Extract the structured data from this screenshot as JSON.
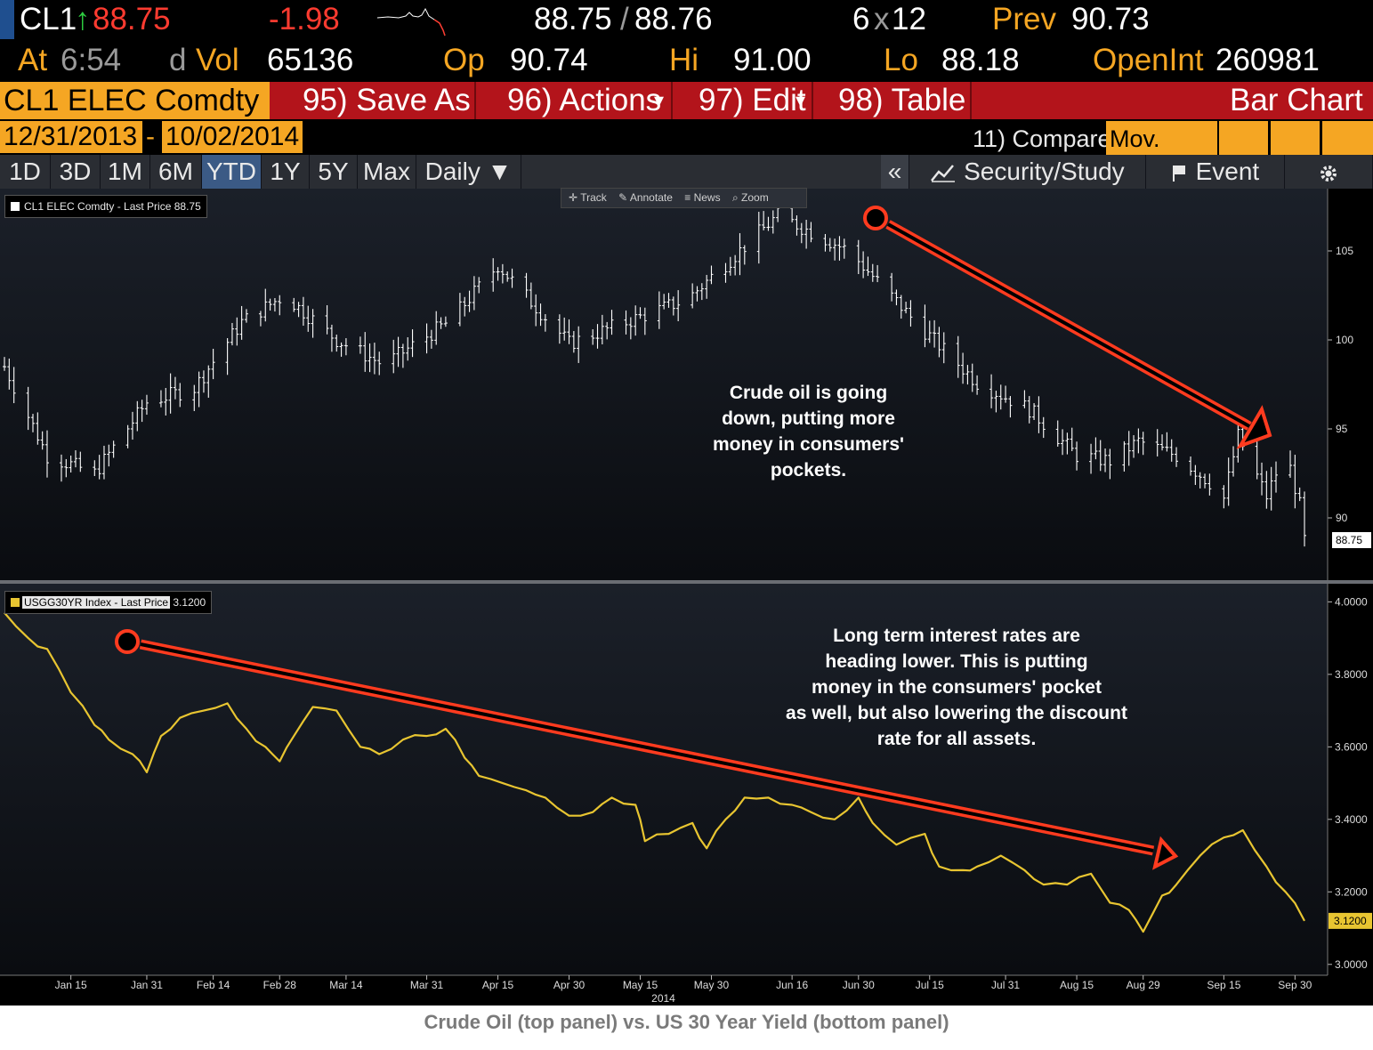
{
  "header": {
    "ticker": "CL1",
    "arrow": "↑",
    "last": "88.75",
    "change": "-1.98",
    "bid_ask_a": "88.75",
    "bid_ask_slash": "/",
    "bid_ask_b": "88.76",
    "size": "6",
    "size_x": "x",
    "size_b": "12",
    "prev_label": "Prev",
    "prev_value": "90.73",
    "at_label": "At",
    "time": "6:54",
    "d_label": "d",
    "vol_label": "Vol",
    "vol_value": "65136",
    "op_label": "Op",
    "op_value": "90.74",
    "hi_label": "Hi",
    "hi_value": "91.00",
    "lo_label": "Lo",
    "lo_value": "88.18",
    "oi_label": "OpenInt",
    "oi_value": "260981"
  },
  "menu": {
    "security": "CL1 ELEC Comdty",
    "save_as": "95) Save As",
    "actions": "96) Actions",
    "actions_caret": "▾",
    "edit": "97) Edit",
    "edit_caret": "▾",
    "table": "98) Table",
    "chart_type": "Bar Chart"
  },
  "dates": {
    "start": "12/31/2013",
    "dash": "-",
    "end": "10/02/2014",
    "compare": "11) Compare",
    "mov_avgs": "Mov. Avgs"
  },
  "tabs": [
    {
      "label": "1D",
      "active": false
    },
    {
      "label": "3D",
      "active": false
    },
    {
      "label": "1M",
      "active": false
    },
    {
      "label": "6M",
      "active": false
    },
    {
      "label": "YTD",
      "active": true
    },
    {
      "label": "1Y",
      "active": false
    },
    {
      "label": "5Y",
      "active": false
    },
    {
      "label": "Max",
      "active": false
    }
  ],
  "toolbar": {
    "daily": "Daily ▼",
    "collapse": "«",
    "security_study": "Security/Study",
    "event": "Event",
    "track": "Track",
    "annotate": "Annotate",
    "news": "News",
    "zoom": "Zoom"
  },
  "colors": {
    "orange": "#f5a623",
    "red_bar": "#b3141b",
    "arrow_red": "#ff3b1f",
    "yield_line": "#e8c531",
    "price_bars": "#ffffff"
  },
  "annotations": {
    "top": "Crude oil is going down, putting more money in consumers' pockets.",
    "top_lines": [
      "Crude oil is going",
      "down, putting more",
      "money in consumers'",
      "pockets."
    ],
    "bottom_lines": [
      "Long term interest rates are",
      "heading lower.  This is putting",
      "money in the consumers' pocket",
      "as well, but also lowering the discount",
      "rate for all assets."
    ]
  },
  "caption": "Crude Oil (top panel) vs. US 30 Year Yield (bottom panel)",
  "chart_data": [
    {
      "type": "bar",
      "title": "CL1 ELEC Comdty - Last Price",
      "legend": "CL1 ELEC Comdty - Last Price 88.75",
      "last_value_label": "88.75",
      "ylim": [
        86.5,
        108.5
      ],
      "y_ticks": [
        90,
        95,
        100,
        105
      ],
      "x_dates": [
        "2014-01-01",
        "2014-01-15",
        "2014-01-31",
        "2014-02-14",
        "2014-02-28",
        "2014-03-14",
        "2014-03-31",
        "2014-04-15",
        "2014-04-30",
        "2014-05-15",
        "2014-05-30",
        "2014-06-16",
        "2014-06-30",
        "2014-07-15",
        "2014-07-31",
        "2014-08-15",
        "2014-08-29",
        "2014-09-15",
        "2014-09-30",
        "2014-10-02"
      ],
      "close_values": [
        98.5,
        93.5,
        92.5,
        96.5,
        97.3,
        101.0,
        102.5,
        100.0,
        98.6,
        101.1,
        104.2,
        99.8,
        102.3,
        107.0,
        105.0,
        101.0,
        97.6,
        96.1,
        93.5,
        93.2,
        94.3,
        93.5,
        92.0,
        91.1,
        94.6,
        91.2,
        93.8,
        90.7,
        88.75
      ],
      "close_dates": [
        "2014-01-01",
        "2014-01-10",
        "2014-01-20",
        "2014-01-31",
        "2014-02-10",
        "2014-02-20",
        "2014-03-01",
        "2014-03-12",
        "2014-03-22",
        "2014-04-05",
        "2014-04-15",
        "2014-04-30",
        "2014-05-25",
        "2014-06-13",
        "2014-06-28",
        "2014-07-12",
        "2014-07-25",
        "2014-08-05",
        "2014-08-15",
        "2014-08-22",
        "2014-08-28",
        "2014-09-05",
        "2014-09-12",
        "2014-09-15",
        "2014-09-18",
        "2014-09-24",
        "2014-09-28",
        "2014-10-01",
        "2014-10-02"
      ]
    },
    {
      "type": "line",
      "title": "USGG30YR Index - Last Price",
      "legend_name": "USGG30YR Index - Last Price",
      "legend_value": "3.1200",
      "last_value_label": "3.1200",
      "ylim": [
        2.97,
        4.05
      ],
      "y_ticks": [
        "3.0000",
        "3.2000",
        "3.4000",
        "3.6000",
        "3.8000",
        "4.0000"
      ],
      "x": [
        "2014-01-01",
        "2014-01-06",
        "2014-01-10",
        "2014-01-15",
        "2014-01-20",
        "2014-01-23",
        "2014-01-28",
        "2014-01-31",
        "2014-02-03",
        "2014-02-07",
        "2014-02-12",
        "2014-02-17",
        "2014-02-21",
        "2014-02-25",
        "2014-02-28",
        "2014-03-03",
        "2014-03-07",
        "2014-03-12",
        "2014-03-17",
        "2014-03-21",
        "2014-03-26",
        "2014-03-31",
        "2014-04-04",
        "2014-04-08",
        "2014-04-11",
        "2014-04-16",
        "2014-04-21",
        "2014-04-25",
        "2014-04-30",
        "2014-05-05",
        "2014-05-09",
        "2014-05-14",
        "2014-05-16",
        "2014-05-21",
        "2014-05-26",
        "2014-05-29",
        "2014-06-02",
        "2014-06-06",
        "2014-06-11",
        "2014-06-16",
        "2014-06-20",
        "2014-06-25",
        "2014-06-30",
        "2014-07-03",
        "2014-07-08",
        "2014-07-14",
        "2014-07-17",
        "2014-07-22",
        "2014-07-25",
        "2014-07-30",
        "2014-08-04",
        "2014-08-08",
        "2014-08-13",
        "2014-08-18",
        "2014-08-22",
        "2014-08-26",
        "2014-08-29",
        "2014-09-02",
        "2014-09-05",
        "2014-09-10",
        "2014-09-15",
        "2014-09-19",
        "2014-09-24",
        "2014-09-28",
        "2014-10-02"
      ],
      "y": [
        3.97,
        3.9,
        3.87,
        3.75,
        3.66,
        3.62,
        3.58,
        3.53,
        3.63,
        3.68,
        3.7,
        3.72,
        3.65,
        3.6,
        3.56,
        3.63,
        3.71,
        3.7,
        3.6,
        3.58,
        3.62,
        3.63,
        3.65,
        3.57,
        3.52,
        3.5,
        3.48,
        3.46,
        3.41,
        3.42,
        3.46,
        3.44,
        3.34,
        3.36,
        3.39,
        3.32,
        3.4,
        3.46,
        3.46,
        3.44,
        3.42,
        3.4,
        3.46,
        3.39,
        3.33,
        3.36,
        3.27,
        3.26,
        3.27,
        3.3,
        3.26,
        3.22,
        3.22,
        3.25,
        3.17,
        3.15,
        3.09,
        3.19,
        3.22,
        3.3,
        3.35,
        3.37,
        3.27,
        3.2,
        3.12
      ]
    }
  ],
  "x_axis": {
    "labels": [
      "Jan 15",
      "Jan 31",
      "Feb 14",
      "Feb 28",
      "Mar 14",
      "Mar 31",
      "Apr 15",
      "Apr 30",
      "May 15",
      "May 30",
      "Jun 16",
      "Jun 30",
      "Jul 15",
      "Jul 31",
      "Aug 15",
      "Aug 29",
      "Sep 15",
      "Sep 30"
    ],
    "label_dates": [
      "2014-01-15",
      "2014-01-31",
      "2014-02-14",
      "2014-02-28",
      "2014-03-14",
      "2014-03-31",
      "2014-04-15",
      "2014-04-30",
      "2014-05-15",
      "2014-05-30",
      "2014-06-16",
      "2014-06-30",
      "2014-07-15",
      "2014-07-31",
      "2014-08-15",
      "2014-08-29",
      "2014-09-15",
      "2014-09-30"
    ],
    "year_label": "2014"
  }
}
